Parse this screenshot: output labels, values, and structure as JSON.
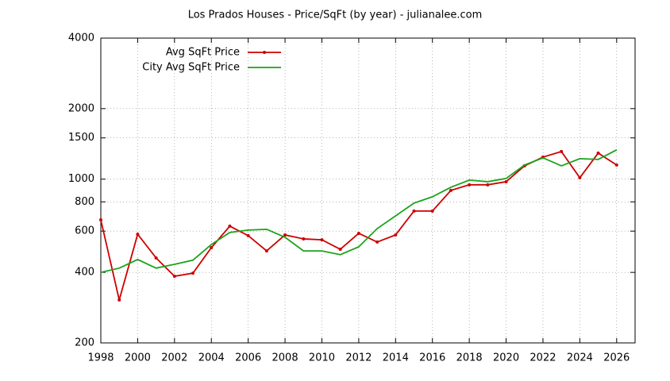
{
  "chart_data": {
    "type": "line",
    "title": "Los Prados Houses - Price/SqFt (by year) - julianalee.com",
    "x": [
      1998,
      1999,
      2000,
      2001,
      2002,
      2003,
      2004,
      2005,
      2006,
      2007,
      2008,
      2009,
      2010,
      2011,
      2012,
      2013,
      2014,
      2015,
      2016,
      2017,
      2018,
      2019,
      2020,
      2021,
      2022,
      2023,
      2024,
      2025,
      2026
    ],
    "series": [
      {
        "name": "Avg SqFt Price",
        "color": "#cc0000",
        "markers": true,
        "values": [
          670,
          305,
          582,
          461,
          385,
          397,
          510,
          630,
          574,
          494,
          578,
          556,
          551,
          502,
          587,
          539,
          578,
          731,
          731,
          895,
          946,
          946,
          975,
          1140,
          1242,
          1312,
          1014,
          1292,
          1149
        ]
      },
      {
        "name": "City Avg SqFt Price",
        "color": "#1aa31a",
        "markers": false,
        "values": [
          400,
          417,
          454,
          417,
          433,
          451,
          526,
          592,
          606,
          611,
          565,
          494,
          494,
          476,
          514,
          615,
          697,
          790,
          841,
          923,
          991,
          975,
          1007,
          1149,
          1233,
          1140,
          1223,
          1214,
          1333
        ]
      }
    ],
    "xlim": [
      1998,
      2027
    ],
    "xticks": [
      1998,
      2000,
      2002,
      2004,
      2006,
      2008,
      2010,
      2012,
      2014,
      2016,
      2018,
      2020,
      2022,
      2024,
      2026
    ],
    "ylim": [
      200,
      4000
    ],
    "yticks": [
      200,
      400,
      600,
      800,
      1000,
      1500,
      2000,
      4000
    ],
    "log_y": true,
    "grid": true,
    "legend": "top-left"
  }
}
